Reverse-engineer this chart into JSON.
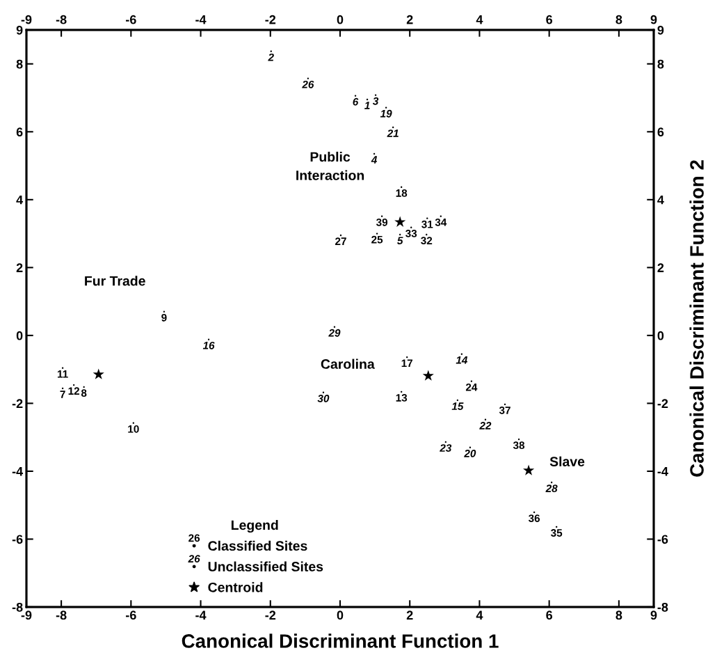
{
  "chart_data": {
    "type": "scatter",
    "xlabel": "Canonical Discriminant Function 1",
    "y2label": "Canonical Discriminant Function 2",
    "legend_title": "Legend",
    "xlim": [
      -9,
      9
    ],
    "ylim": [
      -8,
      9
    ],
    "x2lim": [
      -9,
      9
    ],
    "y2lim": [
      -8,
      9
    ],
    "xticks": [
      -9,
      -8,
      -6,
      -4,
      -2,
      0,
      2,
      4,
      6,
      8,
      9
    ],
    "x2ticks": [
      -9,
      -8,
      -6,
      -4,
      -2,
      0,
      2,
      4,
      6,
      8,
      9
    ],
    "yticks": [
      -8,
      -6,
      -4,
      -2,
      0,
      2,
      4,
      6,
      8,
      9
    ],
    "y2ticks": [
      -8,
      -6,
      -4,
      -2,
      0,
      2,
      4,
      6,
      8,
      9
    ],
    "grid": false,
    "legend": "bottom left",
    "series": [
      {
        "name": "Classified Sites",
        "color": "#000000",
        "marker": "circle",
        "x": [
          1.76,
          1.2,
          1.06,
          0.02,
          2.04,
          2.5,
          2.89,
          2.48,
          -5.05,
          -7.96,
          -7.96,
          -7.64,
          -7.35,
          -5.93,
          1.92,
          1.76,
          3.77,
          4.73,
          5.13,
          5.57,
          6.21
        ],
        "values": [
          4.37,
          3.51,
          3.0,
          2.95,
          3.18,
          3.45,
          3.51,
          2.97,
          0.7,
          -0.96,
          -1.56,
          -1.46,
          -1.52,
          -2.58,
          -0.64,
          -1.66,
          -1.35,
          -2.03,
          -3.06,
          -5.21,
          -5.64
        ]
      },
      {
        "name": "Unclassified Sites",
        "color": "#000000",
        "marker": "circle",
        "x": [
          -1.98,
          -0.92,
          0.44,
          0.78,
          1.02,
          1.32,
          1.52,
          0.98,
          1.72,
          -0.16,
          -3.77,
          -0.48,
          3.49,
          3.37,
          4.17,
          3.03,
          3.73,
          6.07
        ],
        "values": [
          8.37,
          7.57,
          7.06,
          6.95,
          7.08,
          6.71,
          6.13,
          5.35,
          2.97,
          0.25,
          -0.12,
          -1.68,
          -0.55,
          -1.91,
          -2.48,
          -3.14,
          -3.3,
          -4.33
        ]
      },
      {
        "name": "Centroid",
        "color": "#000000",
        "marker": "star",
        "x": [
          -6.93,
          1.72,
          2.53,
          5.41
        ],
        "values": [
          -1.15,
          3.34,
          -1.19,
          -3.98
        ]
      }
    ],
    "annotations": [
      {
        "text": "18",
        "x": 1.76,
        "y": 4.37
      },
      {
        "text": "39",
        "x": 1.2,
        "y": 3.51
      },
      {
        "text": "25",
        "x": 1.06,
        "y": 3.0
      },
      {
        "text": "27",
        "x": 0.02,
        "y": 2.95
      },
      {
        "text": "33",
        "x": 2.04,
        "y": 3.18
      },
      {
        "text": "31",
        "x": 2.5,
        "y": 3.45
      },
      {
        "text": "34",
        "x": 2.89,
        "y": 3.51
      },
      {
        "text": "32",
        "x": 2.48,
        "y": 2.97
      },
      {
        "text": "9",
        "x": -5.05,
        "y": 0.7
      },
      {
        "text": "11",
        "x": -7.96,
        "y": -0.96
      },
      {
        "text": "7",
        "x": -7.96,
        "y": -1.56
      },
      {
        "text": "12",
        "x": -7.64,
        "y": -1.46
      },
      {
        "text": "8",
        "x": -7.35,
        "y": -1.52
      },
      {
        "text": "10",
        "x": -5.93,
        "y": -2.58
      },
      {
        "text": "17",
        "x": 1.92,
        "y": -0.64
      },
      {
        "text": "13",
        "x": 1.76,
        "y": -1.66
      },
      {
        "text": "24",
        "x": 3.77,
        "y": -1.35
      },
      {
        "text": "37",
        "x": 4.73,
        "y": -2.03
      },
      {
        "text": "38",
        "x": 5.13,
        "y": -3.06
      },
      {
        "text": "36",
        "x": 5.57,
        "y": -5.21
      },
      {
        "text": "35",
        "x": 6.21,
        "y": -5.64
      },
      {
        "text": "2",
        "x": -1.98,
        "y": 8.37
      },
      {
        "text": "26",
        "x": -0.92,
        "y": 7.57
      },
      {
        "text": "6",
        "x": 0.44,
        "y": 7.06
      },
      {
        "text": "1",
        "x": 0.78,
        "y": 6.95
      },
      {
        "text": "3",
        "x": 1.02,
        "y": 7.08
      },
      {
        "text": "19",
        "x": 1.32,
        "y": 6.71
      },
      {
        "text": "21",
        "x": 1.52,
        "y": 6.13
      },
      {
        "text": "4",
        "x": 0.98,
        "y": 5.35
      },
      {
        "text": "5",
        "x": 1.72,
        "y": 2.97
      },
      {
        "text": "29",
        "x": -0.16,
        "y": 0.25
      },
      {
        "text": "16",
        "x": -3.77,
        "y": -0.12
      },
      {
        "text": "30",
        "x": -0.48,
        "y": -1.68
      },
      {
        "text": "14",
        "x": 3.49,
        "y": -0.55
      },
      {
        "text": "15",
        "x": 3.37,
        "y": -1.91
      },
      {
        "text": "22",
        "x": 4.17,
        "y": -2.48
      },
      {
        "text": "23",
        "x": 3.03,
        "y": -3.14
      },
      {
        "text": "20",
        "x": 3.73,
        "y": -3.3
      },
      {
        "text": "28",
        "x": 6.07,
        "y": -4.33
      },
      "Fur Trade",
      "Public\nInteraction",
      "Carolina",
      "Slave"
    ]
  }
}
